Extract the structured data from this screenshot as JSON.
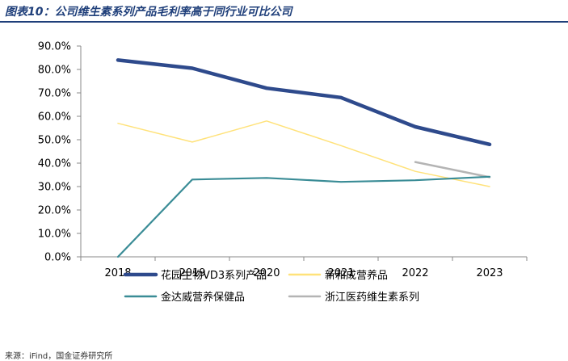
{
  "title": "图表10：公司维生素系列产品毛利率高于同行业可比公司",
  "source": "来源：iFind，国金证券研究所",
  "chart_data": {
    "type": "line",
    "title": "",
    "xlabel": "",
    "ylabel": "",
    "categories": [
      "2018",
      "2019",
      "2020",
      "2021",
      "2022",
      "2023"
    ],
    "ylim": [
      0,
      90
    ],
    "yticks": [
      "0.0%",
      "10.0%",
      "20.0%",
      "30.0%",
      "40.0%",
      "50.0%",
      "60.0%",
      "70.0%",
      "80.0%",
      "90.0%"
    ],
    "grid": false,
    "legend_position": "bottom",
    "series": [
      {
        "name": "花园生物VD3系列产品",
        "color": "#2e4a8c",
        "width": 4.5,
        "values": [
          84.0,
          80.5,
          72.0,
          68.0,
          55.5,
          48.0
        ]
      },
      {
        "name": "新和成营养品",
        "color": "#ffe27a",
        "width": 1.5,
        "values": [
          57.0,
          49.0,
          58.0,
          47.5,
          36.5,
          30.0
        ]
      },
      {
        "name": "金达威营养保健品",
        "color": "#3a8c96",
        "width": 2.2,
        "values": [
          0.0,
          33.0,
          33.7,
          32.0,
          32.7,
          34.2
        ]
      },
      {
        "name": "浙江医药维生素系列",
        "color": "#b4b4b4",
        "width": 2.5,
        "values": [
          null,
          null,
          null,
          null,
          40.5,
          34.0
        ]
      }
    ]
  }
}
